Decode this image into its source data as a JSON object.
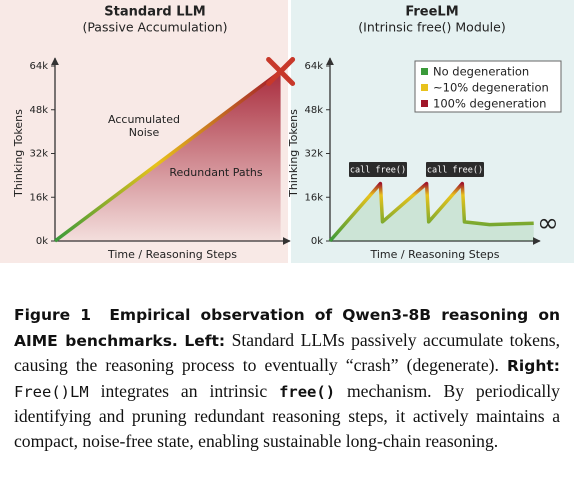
{
  "chart_data": [
    {
      "type": "line",
      "title": "Standard LLM",
      "subtitle": "(Passive Accumulation)",
      "xlabel": "Time / Reasoning Steps",
      "ylabel": "Thinking Tokens",
      "xlim": [
        0,
        10
      ],
      "ylim": [
        0,
        64000
      ],
      "yticks": [
        {
          "value": 0,
          "label": "0k"
        },
        {
          "value": 16000,
          "label": "16k"
        },
        {
          "value": 32000,
          "label": "32k"
        },
        {
          "value": 48000,
          "label": "48k"
        },
        {
          "value": 64000,
          "label": "64k"
        }
      ],
      "gradient": [
        "#3a9a3a",
        "#e8c21c",
        "#a0172a"
      ],
      "x": [
        0,
        9.6
      ],
      "series": [
        {
          "values": [
            0,
            62000
          ]
        }
      ],
      "annotations": [
        [
          "Accumulated",
          "Noise"
        ],
        [
          "Redundant Paths"
        ]
      ]
    },
    {
      "type": "line",
      "title": "FreeLM",
      "subtitle": "(Intrinsic free() Module)",
      "xlabel": "Time / Reasoning Steps",
      "ylabel": "Thinking Tokens",
      "xlim": [
        0,
        10
      ],
      "ylim": [
        0,
        64000
      ],
      "yticks": [
        {
          "value": 0,
          "label": "0k"
        },
        {
          "value": 16000,
          "label": "16k"
        },
        {
          "value": 32000,
          "label": "32k"
        },
        {
          "value": 48000,
          "label": "48k"
        },
        {
          "value": 64000,
          "label": "64k"
        }
      ],
      "legend": [
        {
          "label": "No degeneration",
          "color": "#3a9a3a"
        },
        {
          "label": "~10% degeneration",
          "color": "#e8c21c"
        },
        {
          "label": "100% degeneration",
          "color": "#a0172a"
        }
      ],
      "x": [
        0,
        2.4,
        2.5,
        4.6,
        4.7,
        6.3,
        6.4,
        7.6,
        9.7
      ],
      "series": [
        {
          "values": [
            0,
            21000,
            7000,
            21000,
            7000,
            21000,
            7000,
            6000,
            6500
          ]
        }
      ],
      "annotations": [
        "call free()",
        "call free()",
        "∞"
      ]
    }
  ],
  "caption": {
    "label": "Figure 1",
    "title": "Empirical observation of Qwen3-8B reasoning on AIME benchmarks.",
    "left_label": "Left:",
    "left_text": "Standard LLMs passively accumulate tokens, causing the reasoning process to eventually “crash” (degenerate).",
    "right_label": "Right:",
    "right_name": "Free()LM",
    "right_text1": "integrates an intrinsic",
    "right_code": "free()",
    "right_text2": "mechanism. By periodically identifying and pruning redundant reasoning steps, it actively maintains a compact, noise-free state, enabling sustainable long-chain reasoning."
  }
}
